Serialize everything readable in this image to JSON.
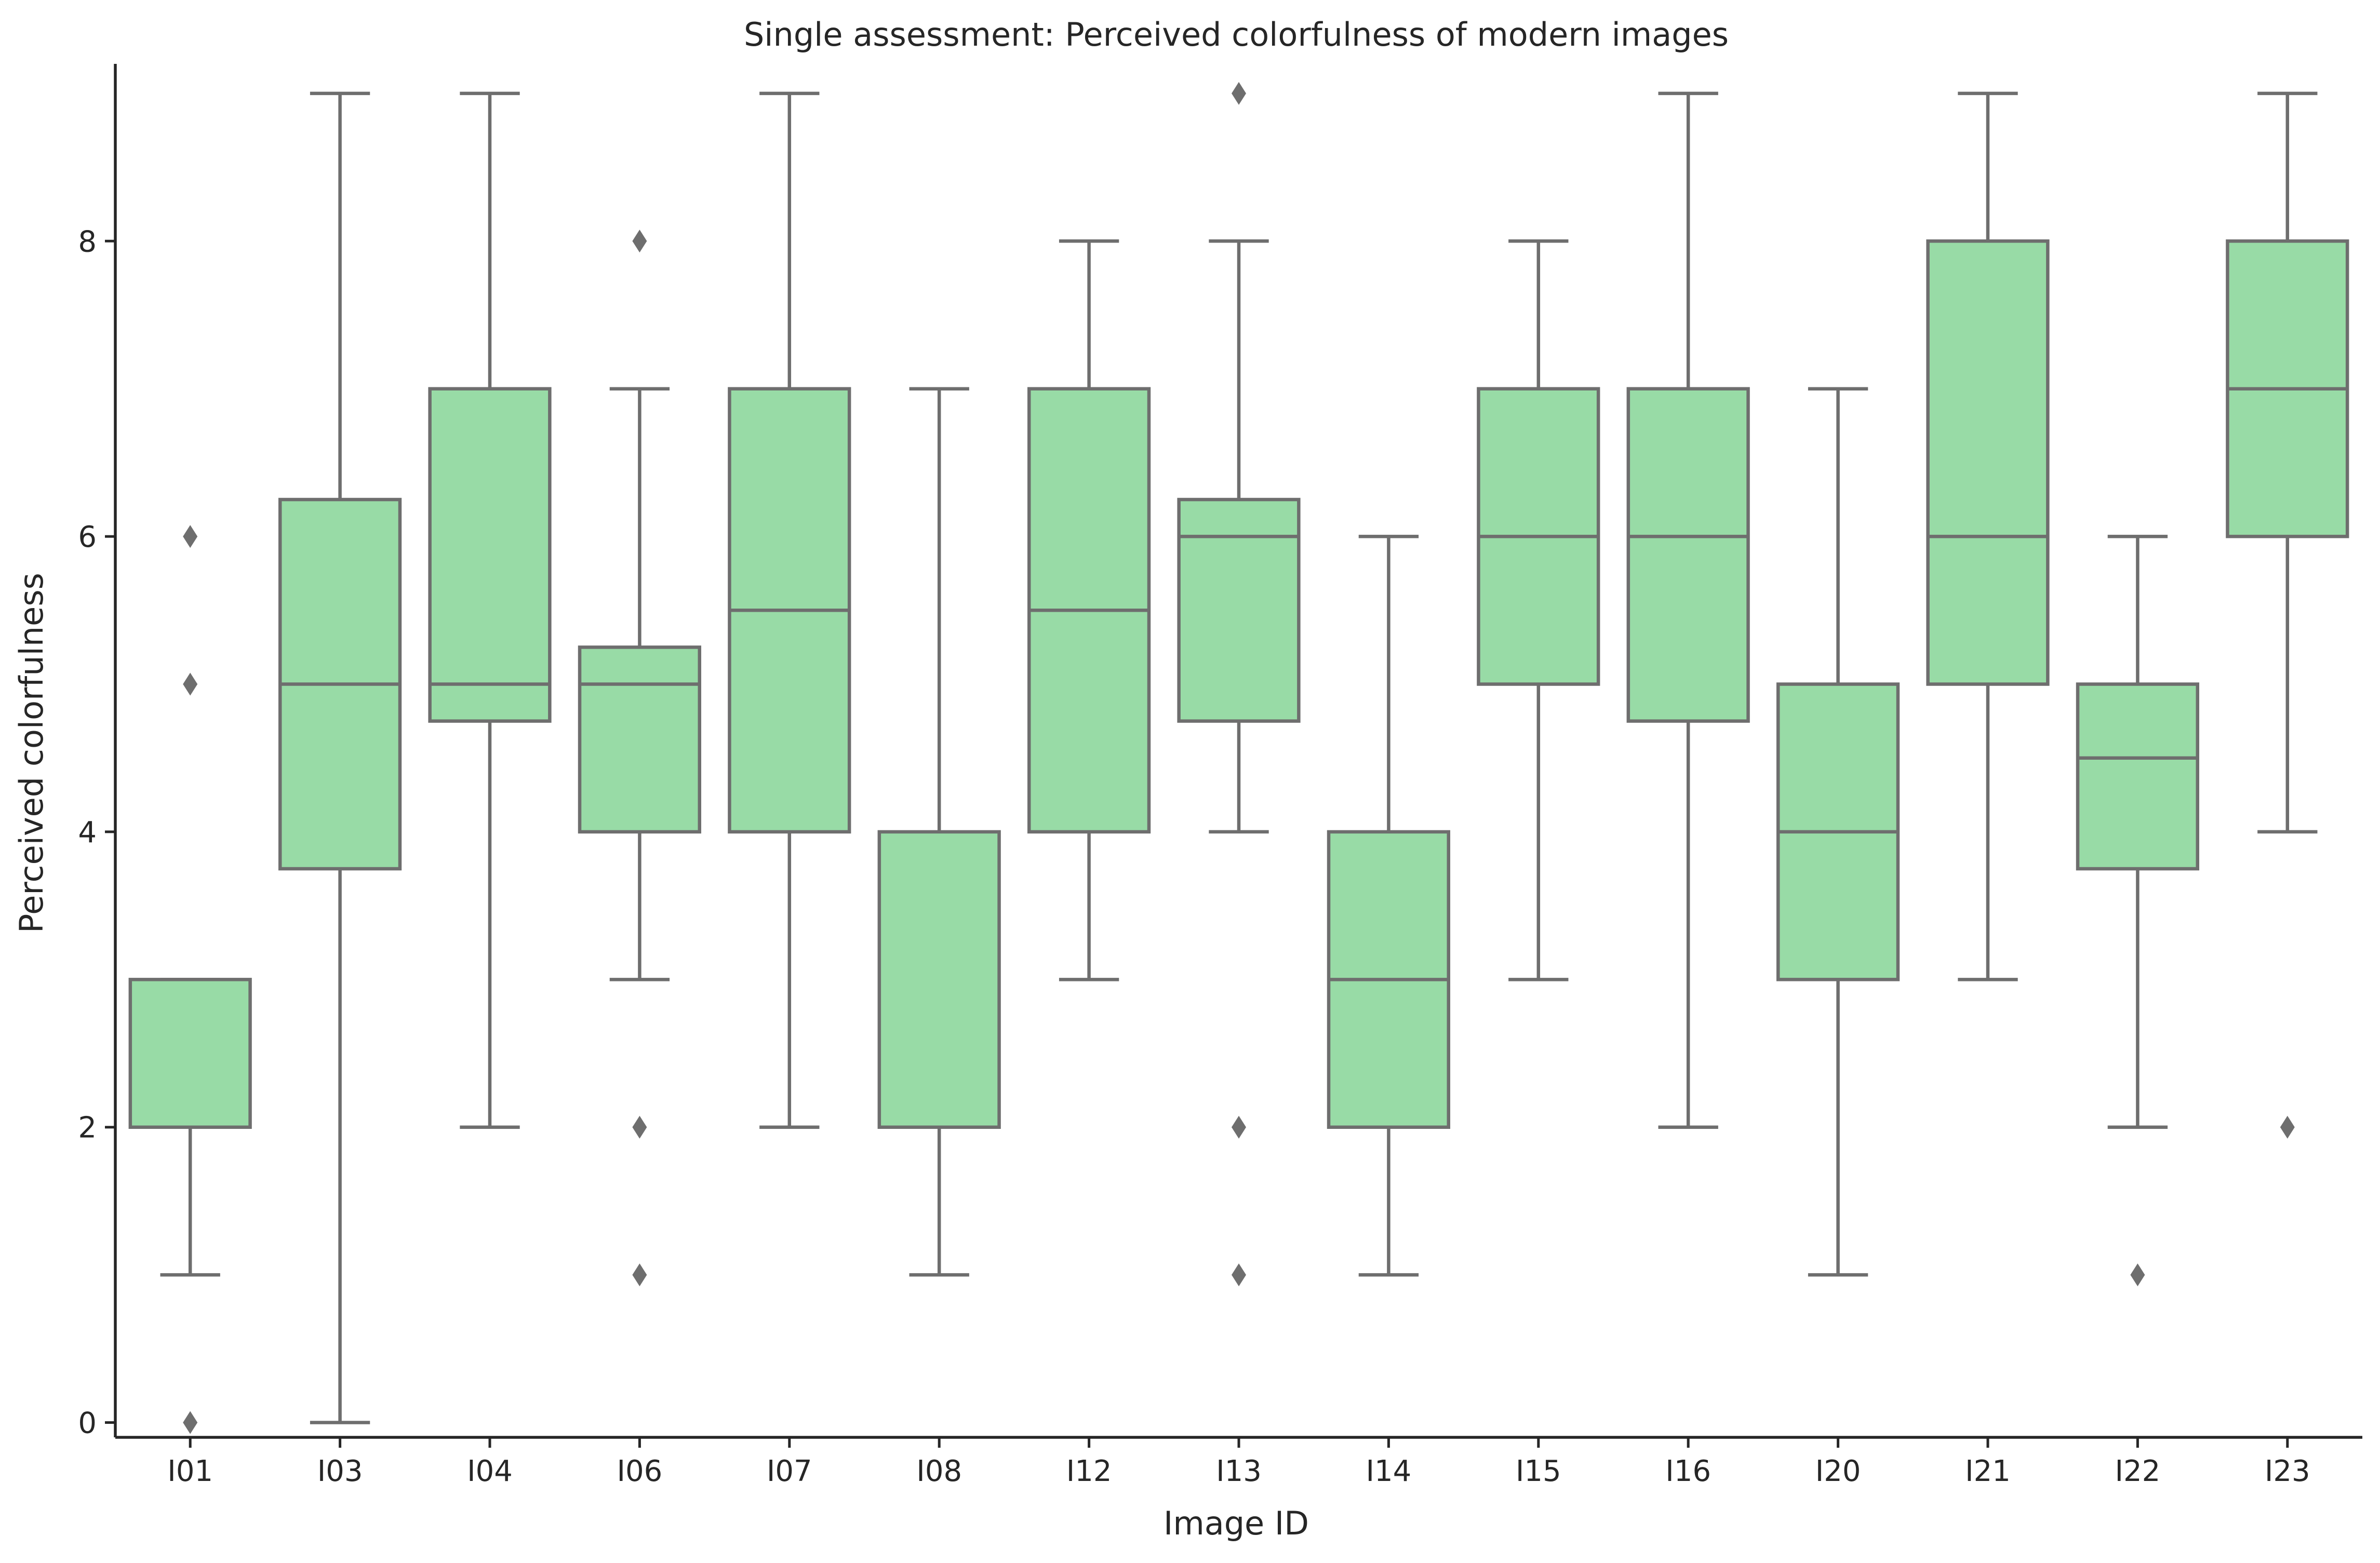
{
  "chart_data": {
    "type": "box",
    "title": "Single assessment: Perceived colorfulness of modern images",
    "xlabel": "Image ID",
    "ylabel": "Perceived colorfulness",
    "ylim": [
      -0.1,
      9.2
    ],
    "yticks": [
      0,
      2,
      4,
      6,
      8
    ],
    "grid": false,
    "box_color": "#98dba6",
    "line_color": "#6e6e6e",
    "outlier_marker": "diamond",
    "categories": [
      "I01",
      "I03",
      "I04",
      "I06",
      "I07",
      "I08",
      "I12",
      "I13",
      "I14",
      "I15",
      "I16",
      "I20",
      "I21",
      "I22",
      "I23"
    ],
    "boxes": [
      {
        "id": "I01",
        "whislo": 1,
        "q1": 2,
        "med": 2,
        "q3": 3,
        "whishi": 3,
        "fliers": [
          0,
          5,
          6
        ]
      },
      {
        "id": "I03",
        "whislo": 0,
        "q1": 3.75,
        "med": 5,
        "q3": 6.25,
        "whishi": 9,
        "fliers": []
      },
      {
        "id": "I04",
        "whislo": 2,
        "q1": 4.75,
        "med": 5,
        "q3": 7,
        "whishi": 9,
        "fliers": []
      },
      {
        "id": "I06",
        "whislo": 3,
        "q1": 4,
        "med": 5,
        "q3": 5.25,
        "whishi": 7,
        "fliers": [
          1,
          2,
          8
        ]
      },
      {
        "id": "I07",
        "whislo": 2,
        "q1": 4,
        "med": 5.5,
        "q3": 7,
        "whishi": 9,
        "fliers": []
      },
      {
        "id": "I08",
        "whislo": 1,
        "q1": 2,
        "med": 2,
        "q3": 4,
        "whishi": 7,
        "fliers": []
      },
      {
        "id": "I12",
        "whislo": 3,
        "q1": 4,
        "med": 5.5,
        "q3": 7,
        "whishi": 8,
        "fliers": []
      },
      {
        "id": "I13",
        "whislo": 4,
        "q1": 4.75,
        "med": 6,
        "q3": 6.25,
        "whishi": 8,
        "fliers": [
          1,
          2,
          9
        ]
      },
      {
        "id": "I14",
        "whislo": 1,
        "q1": 2,
        "med": 3,
        "q3": 4,
        "whishi": 6,
        "fliers": []
      },
      {
        "id": "I15",
        "whislo": 3,
        "q1": 5,
        "med": 6,
        "q3": 7,
        "whishi": 8,
        "fliers": []
      },
      {
        "id": "I16",
        "whislo": 2,
        "q1": 4.75,
        "med": 6,
        "q3": 7,
        "whishi": 9,
        "fliers": []
      },
      {
        "id": "I20",
        "whislo": 1,
        "q1": 3,
        "med": 4,
        "q3": 5,
        "whishi": 7,
        "fliers": []
      },
      {
        "id": "I21",
        "whislo": 3,
        "q1": 5,
        "med": 6,
        "q3": 8,
        "whishi": 9,
        "fliers": []
      },
      {
        "id": "I22",
        "whislo": 2,
        "q1": 3.75,
        "med": 4.5,
        "q3": 5,
        "whishi": 6,
        "fliers": [
          1
        ]
      },
      {
        "id": "I23",
        "whislo": 4,
        "q1": 6,
        "med": 7,
        "q3": 8,
        "whishi": 9,
        "fliers": [
          2
        ]
      }
    ]
  }
}
